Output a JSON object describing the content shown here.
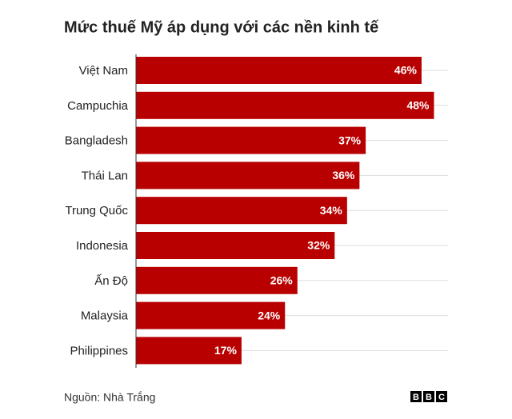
{
  "chart_data": {
    "type": "bar",
    "orientation": "horizontal",
    "title": "Mức thuế Mỹ áp dụng với các nền kinh tế",
    "categories": [
      "Việt Nam",
      "Campuchia",
      "Bangladesh",
      "Thái Lan",
      "Trung Quốc",
      "Indonesia",
      "Ấn Độ",
      "Malaysia",
      "Philippines"
    ],
    "values": [
      46,
      48,
      37,
      36,
      34,
      32,
      26,
      24,
      17
    ],
    "value_labels": [
      "46%",
      "48%",
      "37%",
      "36%",
      "34%",
      "32%",
      "26%",
      "24%",
      "17%"
    ],
    "color": "#b80000",
    "source": "Nguồn: Nhà Trắng",
    "logo": [
      "B",
      "B",
      "C"
    ]
  }
}
